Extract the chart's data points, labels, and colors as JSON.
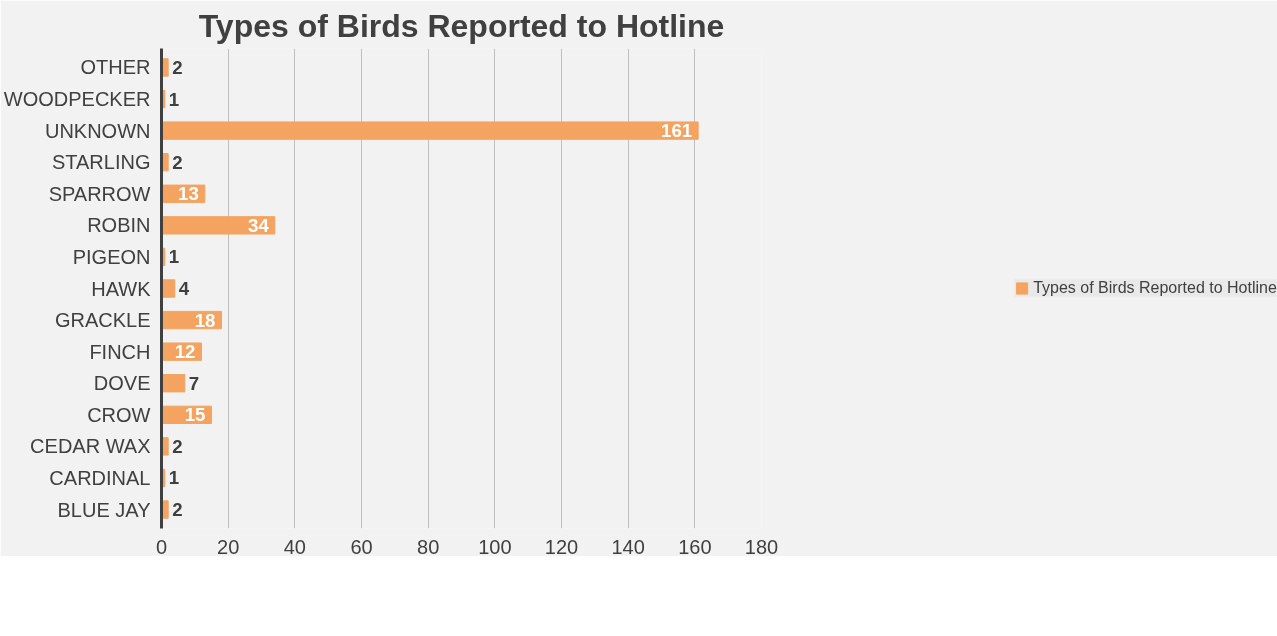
{
  "chart_data": {
    "type": "bar",
    "orientation": "horizontal",
    "title": "Types of Birds Reported to Hotline",
    "categories": [
      "OTHER",
      "WOODPECKER",
      "UNKNOWN",
      "STARLING",
      "SPARROW",
      "ROBIN",
      "PIGEON",
      "HAWK",
      "GRACKLE",
      "FINCH",
      "DOVE",
      "CROW",
      "CEDAR WAX",
      "CARDINAL",
      "BLUE JAY"
    ],
    "series": [
      {
        "name": "Types of Birds Reported to Hotline",
        "color": "#f4a460",
        "values": [
          2,
          1,
          161,
          2,
          13,
          34,
          1,
          4,
          18,
          12,
          7,
          15,
          2,
          1,
          2
        ]
      }
    ],
    "xlim": [
      0,
      180
    ],
    "xticks": [
      0,
      20,
      40,
      60,
      80,
      100,
      120,
      140,
      160,
      180
    ],
    "grid": "x",
    "legend": "right",
    "data_labels": true
  }
}
